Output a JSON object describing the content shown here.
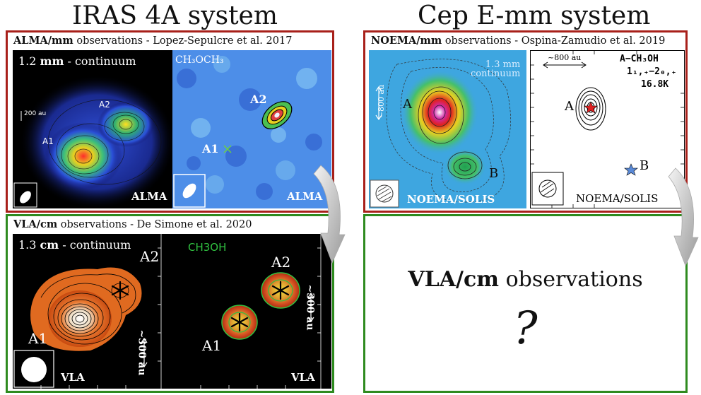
{
  "titles": {
    "left": "IRAS 4A system",
    "right": "Cep E-mm system"
  },
  "alma_panel": {
    "title_bold": "ALMA/mm",
    "title_rest": " observations - Lopez-Sepulcre et al. 2017",
    "left_map": {
      "label_pre": "1.2 ",
      "label_bold": "mm",
      "label_post": " - continuum",
      "scale": "200 au",
      "a1": "A1",
      "a2": "A2",
      "footer": "ALMA"
    },
    "right_map": {
      "label": "CH₃OCH₃",
      "a1": "A1",
      "a2": "A2",
      "footer": "ALMA"
    }
  },
  "noema_panel": {
    "title_bold": "NOEMA/mm",
    "title_rest": " observations - Ospina-Zamudio et al. 2019",
    "left_map": {
      "label_line1": "1.3 mm",
      "label_line2": "continuum",
      "scale": "~800 au",
      "a": "A",
      "b": "B",
      "footer": "NOEMA/SOLIS"
    },
    "right_map": {
      "scale": "~800 au",
      "molecule": "A−CH₃OH",
      "transition": "1₁,₊−2₀,₊",
      "energy": "16.8K",
      "a": "A",
      "b": "B",
      "footer": "NOEMA/SOLIS"
    }
  },
  "vla_panel": {
    "title_bold": "VLA/cm",
    "title_rest": " observations - De Simone et al. 2020",
    "left_map": {
      "label_pre": "1.3 ",
      "label_bold": "cm",
      "label_post": " - continuum",
      "a1": "A1",
      "a2": "A2",
      "scale": "~300 au",
      "footer": "VLA"
    },
    "right_map": {
      "label": "CH3OH",
      "a1": "A1",
      "a2": "A2",
      "scale": "~300 au",
      "footer": "VLA"
    }
  },
  "cep_vla_panel": {
    "text_bold": "VLA/cm",
    "text_rest": " observations",
    "question": "?"
  },
  "colors": {
    "red_border": "#a8201a",
    "green_border": "#2e8b1f"
  }
}
